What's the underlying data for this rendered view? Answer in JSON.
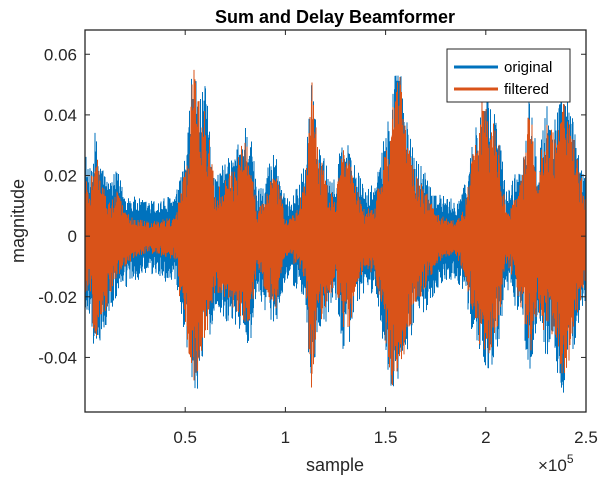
{
  "chart_data": {
    "type": "line",
    "title": "Sum and Delay Beamformer",
    "xlabel": "sample",
    "ylabel": "magnitude",
    "xlim": [
      0,
      250000
    ],
    "ylim": [
      -0.058,
      0.068
    ],
    "x_exponent_label": {
      "base": "×10",
      "exp": "5"
    },
    "x_ticks": [
      50000,
      100000,
      150000,
      200000,
      250000
    ],
    "x_tick_labels": [
      "0.5",
      "1",
      "1.5",
      "2",
      "2.5"
    ],
    "y_ticks": [
      -0.04,
      -0.02,
      0,
      0.02,
      0.04,
      0.06
    ],
    "y_tick_labels": [
      "-0.04",
      "-0.02",
      "0",
      "0.02",
      "0.04",
      "0.06"
    ],
    "grid": false,
    "legend": {
      "position": "top-right",
      "entries": [
        "original",
        "filtered"
      ]
    },
    "colors": {
      "original": "#0072BD",
      "filtered": "#D95319"
    },
    "series": [
      {
        "name": "original",
        "envelope": {
          "x": [
            0,
            2000,
            5000,
            8000,
            12000,
            16000,
            20000,
            25000,
            30000,
            35000,
            40000,
            45000,
            48000,
            51000,
            54000,
            57000,
            60000,
            65000,
            70000,
            75000,
            78000,
            82000,
            86000,
            90000,
            95000,
            100000,
            105000,
            110000,
            113000,
            116000,
            120000,
            125000,
            128000,
            132000,
            136000,
            140000,
            145000,
            150000,
            153000,
            156000,
            160000,
            164000,
            170000,
            175000,
            180000,
            185000,
            190000,
            194000,
            198000,
            202000,
            206000,
            210000,
            214000,
            218000,
            222000,
            226000,
            230000,
            234000,
            238000,
            242000,
            246000,
            250000
          ],
          "upper": [
            0.03,
            0.02,
            0.035,
            0.025,
            0.018,
            0.022,
            0.015,
            0.013,
            0.012,
            0.012,
            0.013,
            0.014,
            0.02,
            0.032,
            0.06,
            0.045,
            0.05,
            0.02,
            0.025,
            0.028,
            0.035,
            0.04,
            0.015,
            0.022,
            0.03,
            0.012,
            0.015,
            0.025,
            0.053,
            0.032,
            0.025,
            0.018,
            0.035,
            0.03,
            0.022,
            0.015,
            0.018,
            0.035,
            0.045,
            0.068,
            0.04,
            0.028,
            0.022,
            0.015,
            0.013,
            0.012,
            0.018,
            0.035,
            0.05,
            0.045,
            0.04,
            0.015,
            0.02,
            0.025,
            0.05,
            0.028,
            0.045,
            0.04,
            0.048,
            0.045,
            0.03,
            0.02
          ],
          "lower": [
            -0.03,
            -0.025,
            -0.04,
            -0.035,
            -0.028,
            -0.02,
            -0.018,
            -0.015,
            -0.014,
            -0.013,
            -0.015,
            -0.016,
            -0.03,
            -0.038,
            -0.052,
            -0.05,
            -0.04,
            -0.025,
            -0.028,
            -0.03,
            -0.032,
            -0.038,
            -0.018,
            -0.025,
            -0.03,
            -0.014,
            -0.018,
            -0.02,
            -0.058,
            -0.035,
            -0.03,
            -0.02,
            -0.038,
            -0.035,
            -0.025,
            -0.018,
            -0.02,
            -0.04,
            -0.055,
            -0.05,
            -0.042,
            -0.03,
            -0.025,
            -0.018,
            -0.015,
            -0.014,
            -0.02,
            -0.035,
            -0.042,
            -0.045,
            -0.038,
            -0.018,
            -0.022,
            -0.03,
            -0.045,
            -0.03,
            -0.04,
            -0.038,
            -0.055,
            -0.045,
            -0.03,
            -0.022
          ]
        }
      },
      {
        "name": "filtered",
        "envelope": {
          "x": [
            0,
            2000,
            5000,
            8000,
            12000,
            16000,
            20000,
            25000,
            30000,
            35000,
            40000,
            45000,
            48000,
            51000,
            54000,
            57000,
            60000,
            65000,
            70000,
            75000,
            78000,
            82000,
            86000,
            90000,
            95000,
            100000,
            105000,
            110000,
            113000,
            116000,
            120000,
            125000,
            128000,
            132000,
            136000,
            140000,
            145000,
            150000,
            153000,
            156000,
            160000,
            164000,
            170000,
            175000,
            180000,
            185000,
            190000,
            194000,
            198000,
            202000,
            206000,
            210000,
            214000,
            218000,
            222000,
            226000,
            230000,
            234000,
            238000,
            242000,
            246000,
            250000
          ],
          "upper": [
            0.022,
            0.015,
            0.03,
            0.02,
            0.012,
            0.015,
            0.008,
            0.006,
            0.005,
            0.005,
            0.006,
            0.007,
            0.015,
            0.028,
            0.062,
            0.045,
            0.048,
            0.015,
            0.02,
            0.022,
            0.03,
            0.035,
            0.008,
            0.015,
            0.025,
            0.005,
            0.008,
            0.018,
            0.055,
            0.03,
            0.02,
            0.012,
            0.03,
            0.025,
            0.015,
            0.008,
            0.012,
            0.03,
            0.04,
            0.06,
            0.035,
            0.022,
            0.015,
            0.008,
            0.006,
            0.005,
            0.012,
            0.03,
            0.045,
            0.04,
            0.035,
            0.008,
            0.012,
            0.02,
            0.045,
            0.02,
            0.04,
            0.035,
            0.045,
            0.04,
            0.025,
            0.012
          ],
          "lower": [
            -0.022,
            -0.018,
            -0.035,
            -0.03,
            -0.022,
            -0.014,
            -0.01,
            -0.007,
            -0.006,
            -0.006,
            -0.007,
            -0.008,
            -0.025,
            -0.035,
            -0.048,
            -0.045,
            -0.035,
            -0.018,
            -0.022,
            -0.025,
            -0.028,
            -0.032,
            -0.01,
            -0.018,
            -0.025,
            -0.006,
            -0.01,
            -0.014,
            -0.055,
            -0.03,
            -0.025,
            -0.014,
            -0.032,
            -0.03,
            -0.018,
            -0.01,
            -0.014,
            -0.035,
            -0.05,
            -0.045,
            -0.038,
            -0.025,
            -0.018,
            -0.01,
            -0.007,
            -0.006,
            -0.014,
            -0.03,
            -0.038,
            -0.04,
            -0.032,
            -0.01,
            -0.015,
            -0.025,
            -0.04,
            -0.025,
            -0.035,
            -0.032,
            -0.05,
            -0.04,
            -0.025,
            -0.015
          ]
        }
      }
    ]
  }
}
